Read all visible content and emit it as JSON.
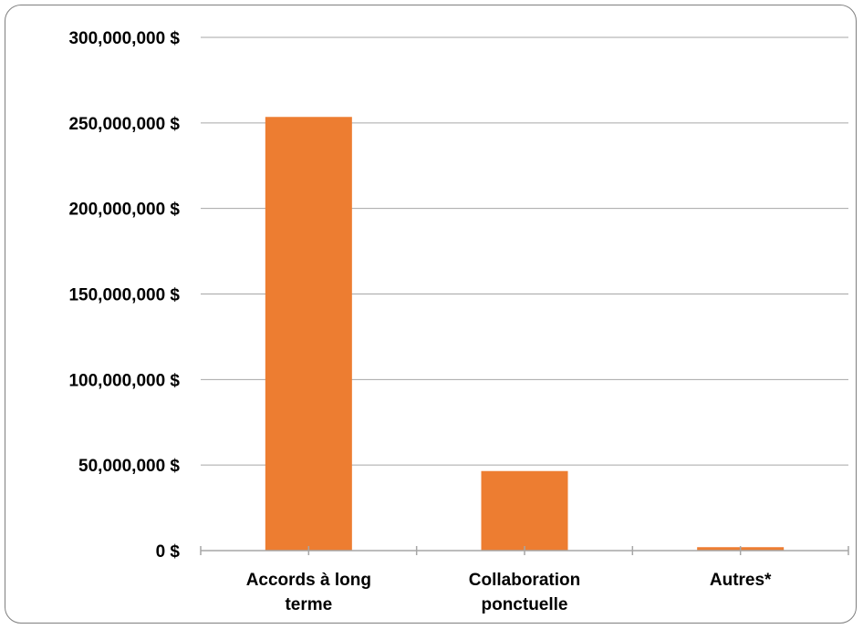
{
  "chart_data": {
    "type": "bar",
    "categories": [
      [
        "Accords à long",
        "terme"
      ],
      [
        "Collaboration",
        "ponctuelle"
      ],
      [
        "Autres*"
      ]
    ],
    "values": [
      253500000,
      46500000,
      2000000
    ],
    "y_ticks": [
      "0 $",
      "50,000,000 $",
      "100,000,000 $",
      "150,000,000 $",
      "200,000,000 $",
      "250,000,000 $",
      "300,000,000 $"
    ],
    "ylim": [
      0,
      300000000
    ],
    "grid": true,
    "bar_color": "#ED7D31",
    "grid_color": "#A6A6A6"
  }
}
